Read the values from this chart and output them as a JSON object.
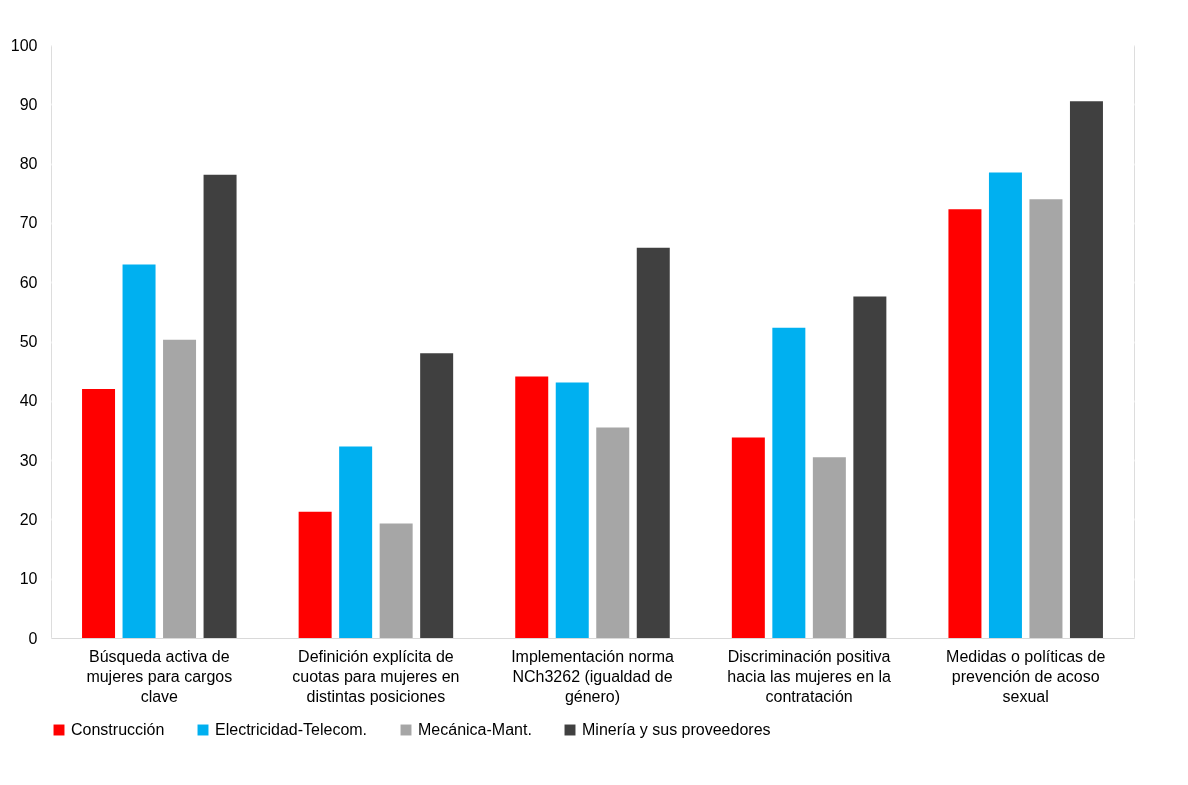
{
  "chart_data": {
    "type": "bar",
    "categories": [
      "Búsqueda activa de mujeres para cargos clave",
      "Definición explícita de cuotas para mujeres en distintas posiciones",
      "Implementación norma NCh3262 (igualdad de género)",
      "Discriminación positiva hacia las mujeres en la contratación",
      "Medidas o políticas de prevención de acoso sexual"
    ],
    "series": [
      {
        "name": "Construcción",
        "color": "#ff0000",
        "values": [
          42,
          21.3,
          44.1,
          33.8,
          72.3
        ]
      },
      {
        "name": "Electricidad-Telecom.",
        "color": "#00b0f0",
        "values": [
          63,
          32.3,
          43.1,
          52.3,
          78.5
        ]
      },
      {
        "name": "Mecánica-Mant.",
        "color": "#a6a6a6",
        "values": [
          50.3,
          19.3,
          35.5,
          30.5,
          74
        ]
      },
      {
        "name": "Minería y sus proveedores",
        "color": "#404040",
        "values": [
          78.1,
          48,
          65.8,
          57.6,
          90.5
        ]
      }
    ],
    "ylim": [
      0,
      100
    ],
    "yticks": [
      0,
      10,
      20,
      30,
      40,
      50,
      60,
      70,
      80,
      90,
      100
    ],
    "grid": "y",
    "legend": "bottom"
  }
}
